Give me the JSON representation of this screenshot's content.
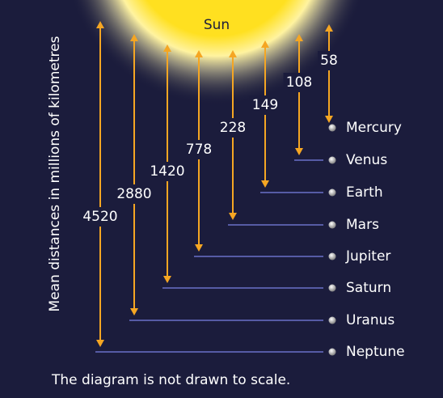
{
  "sun": "Sun",
  "axis_label": "Mean distances in millions of kilometres",
  "note": "The diagram is not drawn to scale.",
  "planets": [
    {
      "name": "Mercury",
      "distance": 58
    },
    {
      "name": "Venus",
      "distance": 108
    },
    {
      "name": "Earth",
      "distance": 149
    },
    {
      "name": "Mars",
      "distance": 228
    },
    {
      "name": "Jupiter",
      "distance": 778
    },
    {
      "name": "Saturn",
      "distance": 1420
    },
    {
      "name": "Uranus",
      "distance": 2880
    },
    {
      "name": "Neptune",
      "distance": 4520
    }
  ]
}
